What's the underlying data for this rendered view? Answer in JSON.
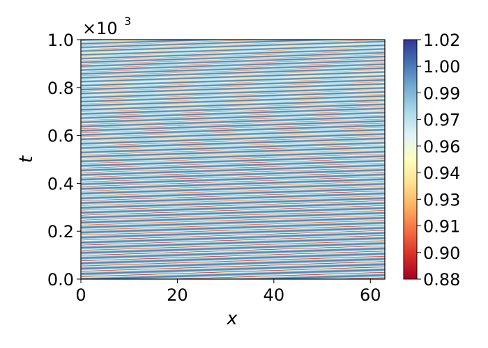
{
  "chart_data": {
    "type": "heatmap",
    "xlabel": "x",
    "ylabel": "t",
    "xlim": [
      0,
      63
    ],
    "ylim": [
      0,
      1.0
    ],
    "y_scale_label": "×10",
    "y_scale_exponent": "3",
    "x_ticks": [
      "0",
      "20",
      "40",
      "60"
    ],
    "y_ticks": [
      "0.0",
      "0.2",
      "0.4",
      "0.6",
      "0.8",
      "1.0"
    ],
    "colorbar": {
      "colormap": "RdYlBu",
      "range": [
        0.88,
        1.02
      ],
      "ticks": [
        "0.88",
        "0.90",
        "0.91",
        "0.93",
        "0.94",
        "0.96",
        "0.97",
        "0.99",
        "1.00",
        "1.02"
      ]
    },
    "pattern": {
      "description_values": "traveling wave stripes drifting with positive slope in x-t plane",
      "wave_speed_dt_per_x": 0.00064,
      "base_wavelength_t": 0.0225,
      "late_wavelength_t": 0.0185,
      "min_value": 0.88,
      "max_value": 1.02
    }
  }
}
